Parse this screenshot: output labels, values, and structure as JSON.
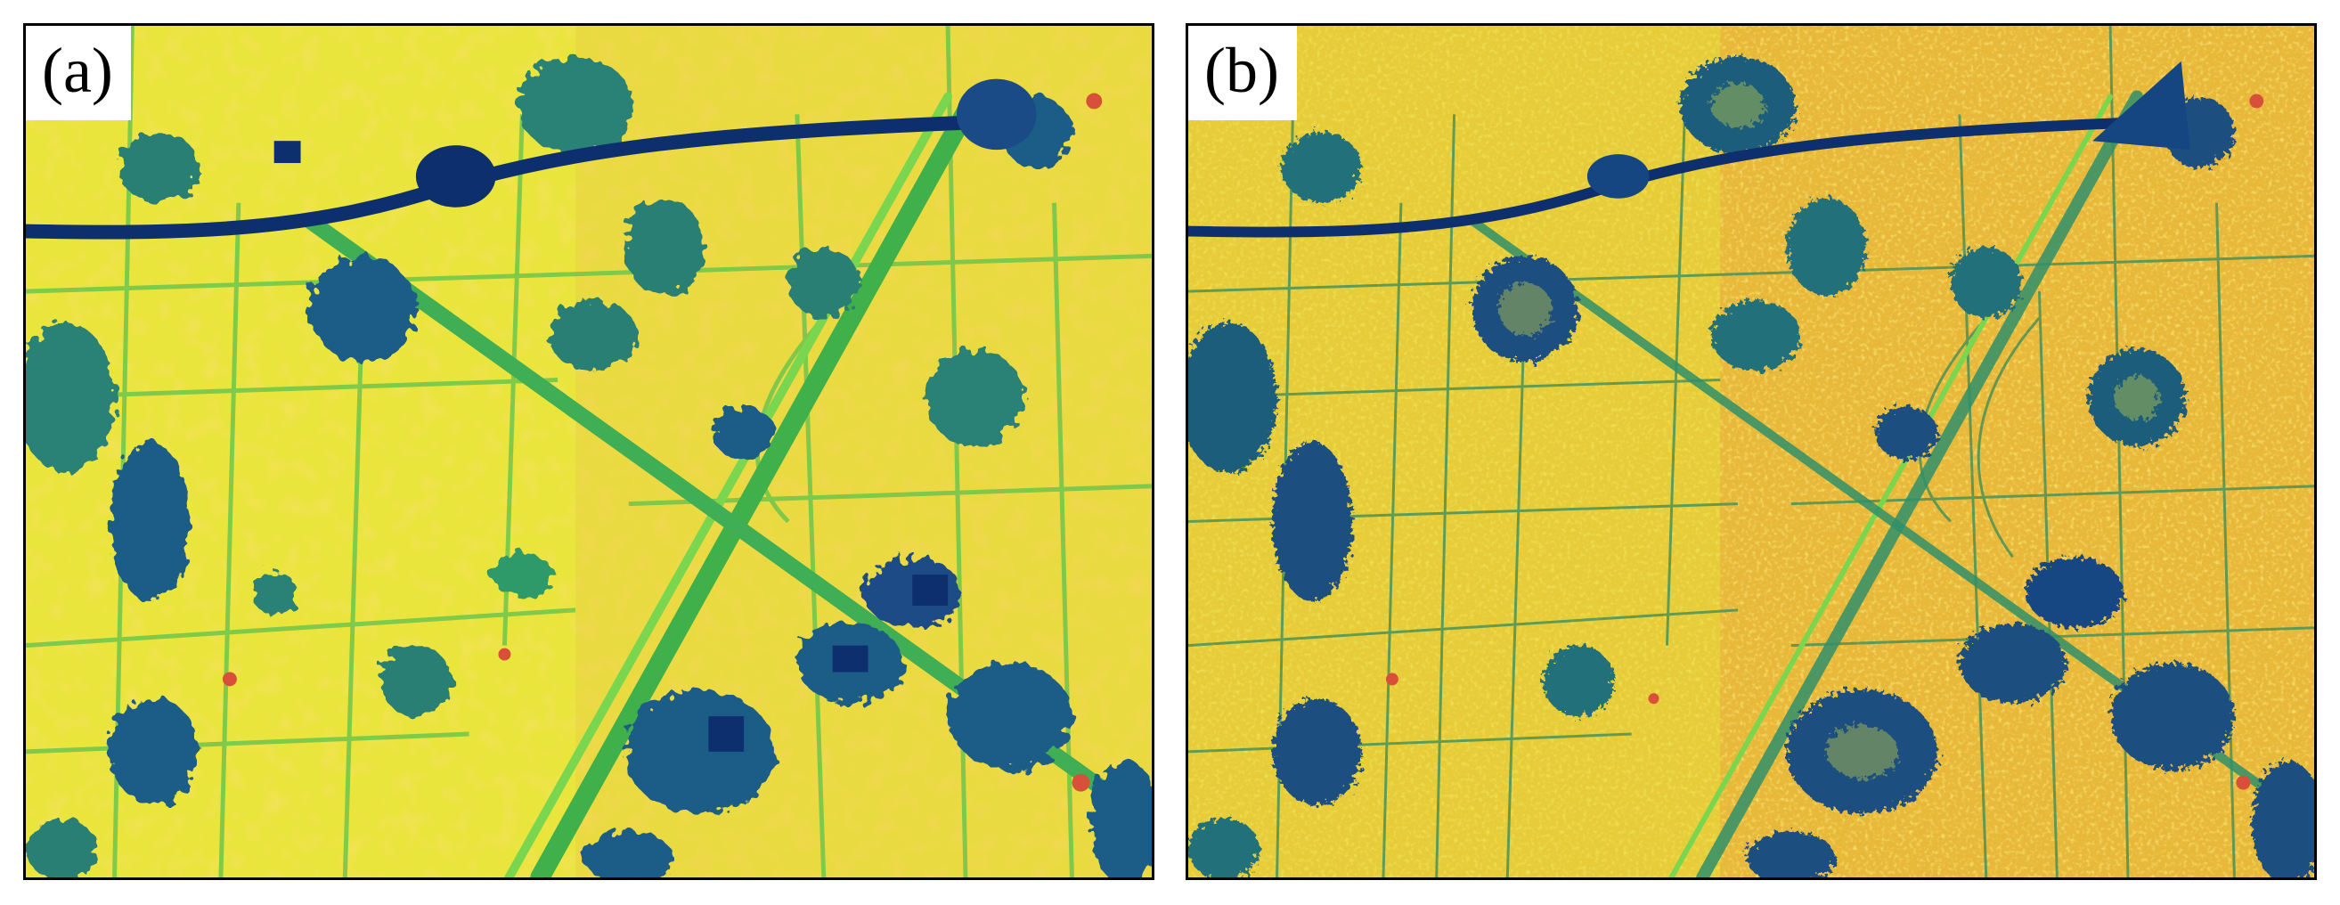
{
  "panels": [
    {
      "label": "(a)",
      "style": "coarse"
    },
    {
      "label": "(b)",
      "style": "fine"
    }
  ],
  "palette": {
    "field_yellow": "#e8e63a",
    "field_light_yellow": "#f0ec4a",
    "field_orange": "#e9b93a",
    "green": "#56c24a",
    "teal": "#2f8f7c",
    "dark_blue": "#1d4f8a",
    "navy": "#0d2f6e",
    "red": "#d9503a"
  }
}
